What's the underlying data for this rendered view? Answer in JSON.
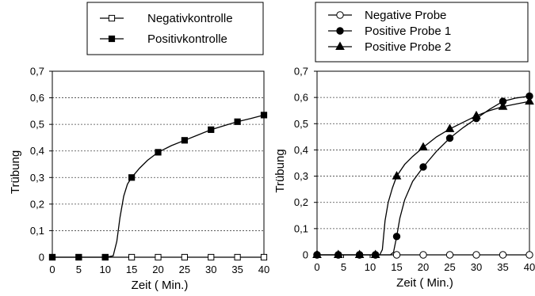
{
  "chart_data": [
    {
      "type": "line",
      "xlabel": "Zeit ( Min.)",
      "ylabel": "Trübung",
      "xlim": [
        0,
        40
      ],
      "ylim": [
        0,
        0.7
      ],
      "xticks": [
        "0",
        "5",
        "10",
        "15",
        "20",
        "25",
        "30",
        "35",
        "40"
      ],
      "yticks": [
        "0",
        "0,1",
        "0,2",
        "0,3",
        "0,4",
        "0,5",
        "0,6",
        "0,7"
      ],
      "grid": "horizontal dashed",
      "legend_position": "top",
      "series": [
        {
          "name": "Negativkontrolle",
          "marker": "square-open",
          "x": [
            0,
            5,
            10,
            15,
            20,
            25,
            30,
            35,
            40
          ],
          "y": [
            0,
            0,
            0,
            0,
            0,
            0,
            0,
            0,
            0
          ]
        },
        {
          "name": "Positivkontrolle",
          "marker": "square-filled",
          "x": [
            0,
            5,
            10,
            15,
            20,
            25,
            30,
            35,
            40
          ],
          "y": [
            0,
            0,
            0,
            0.3,
            0.395,
            0.44,
            0.48,
            0.51,
            0.535
          ],
          "curve": [
            [
              0,
              0
            ],
            [
              10,
              0
            ],
            [
              11.5,
              0.005
            ],
            [
              12.2,
              0.06
            ],
            [
              12.8,
              0.15
            ],
            [
              13.5,
              0.23
            ],
            [
              14.2,
              0.275
            ],
            [
              15,
              0.3
            ],
            [
              16.5,
              0.335
            ],
            [
              18,
              0.365
            ],
            [
              20,
              0.395
            ],
            [
              22.5,
              0.42
            ],
            [
              25,
              0.44
            ],
            [
              27.5,
              0.46
            ],
            [
              30,
              0.48
            ],
            [
              32.5,
              0.495
            ],
            [
              35,
              0.51
            ],
            [
              37.5,
              0.522
            ],
            [
              40,
              0.535
            ]
          ]
        }
      ]
    },
    {
      "type": "line",
      "xlabel": "Zeit ( Min.)",
      "ylabel": "Trübung",
      "xlim": [
        0,
        40
      ],
      "ylim": [
        0,
        0.7
      ],
      "xticks": [
        "0",
        "5",
        "10",
        "15",
        "20",
        "25",
        "30",
        "35",
        "40"
      ],
      "yticks": [
        "0",
        "0,1",
        "0,2",
        "0,3",
        "0,4",
        "0,5",
        "0,6",
        "0,7"
      ],
      "grid": "horizontal dashed",
      "legend_position": "top",
      "series": [
        {
          "name": "Negative Probe",
          "marker": "circle-open",
          "x": [
            0,
            4,
            8,
            11,
            15,
            20,
            25,
            30,
            35,
            40
          ],
          "y": [
            0,
            0,
            0,
            0,
            0,
            0,
            0,
            0,
            0,
            0
          ]
        },
        {
          "name": "Positive Probe 1",
          "marker": "circle-filled",
          "x": [
            0,
            4,
            8,
            11,
            15,
            20,
            25,
            30,
            35,
            40
          ],
          "y": [
            0,
            0,
            0,
            0,
            0.07,
            0.335,
            0.445,
            0.52,
            0.585,
            0.605
          ],
          "curve": [
            [
              0,
              0
            ],
            [
              13.8,
              0
            ],
            [
              14.4,
              0.01
            ],
            [
              15,
              0.07
            ],
            [
              15.6,
              0.14
            ],
            [
              16.5,
              0.21
            ],
            [
              18,
              0.28
            ],
            [
              20,
              0.335
            ],
            [
              22.5,
              0.395
            ],
            [
              25,
              0.445
            ],
            [
              27.5,
              0.485
            ],
            [
              30,
              0.52
            ],
            [
              32.5,
              0.555
            ],
            [
              35,
              0.585
            ],
            [
              37.5,
              0.598
            ],
            [
              40,
              0.605
            ]
          ]
        },
        {
          "name": "Positive Probe 2",
          "marker": "triangle-filled",
          "x": [
            0,
            4,
            8,
            11,
            15,
            20,
            25,
            30,
            35,
            40
          ],
          "y": [
            0,
            0,
            0,
            0,
            0.3,
            0.41,
            0.48,
            0.53,
            0.565,
            0.585
          ],
          "curve": [
            [
              0,
              0
            ],
            [
              11.8,
              0
            ],
            [
              12.3,
              0.02
            ],
            [
              12.8,
              0.13
            ],
            [
              13.4,
              0.2
            ],
            [
              14.2,
              0.255
            ],
            [
              15,
              0.3
            ],
            [
              16.5,
              0.345
            ],
            [
              18,
              0.375
            ],
            [
              20,
              0.41
            ],
            [
              22.5,
              0.45
            ],
            [
              25,
              0.48
            ],
            [
              27.5,
              0.505
            ],
            [
              30,
              0.53
            ],
            [
              32.5,
              0.55
            ],
            [
              35,
              0.565
            ],
            [
              37.5,
              0.575
            ],
            [
              40,
              0.585
            ]
          ]
        }
      ]
    }
  ]
}
